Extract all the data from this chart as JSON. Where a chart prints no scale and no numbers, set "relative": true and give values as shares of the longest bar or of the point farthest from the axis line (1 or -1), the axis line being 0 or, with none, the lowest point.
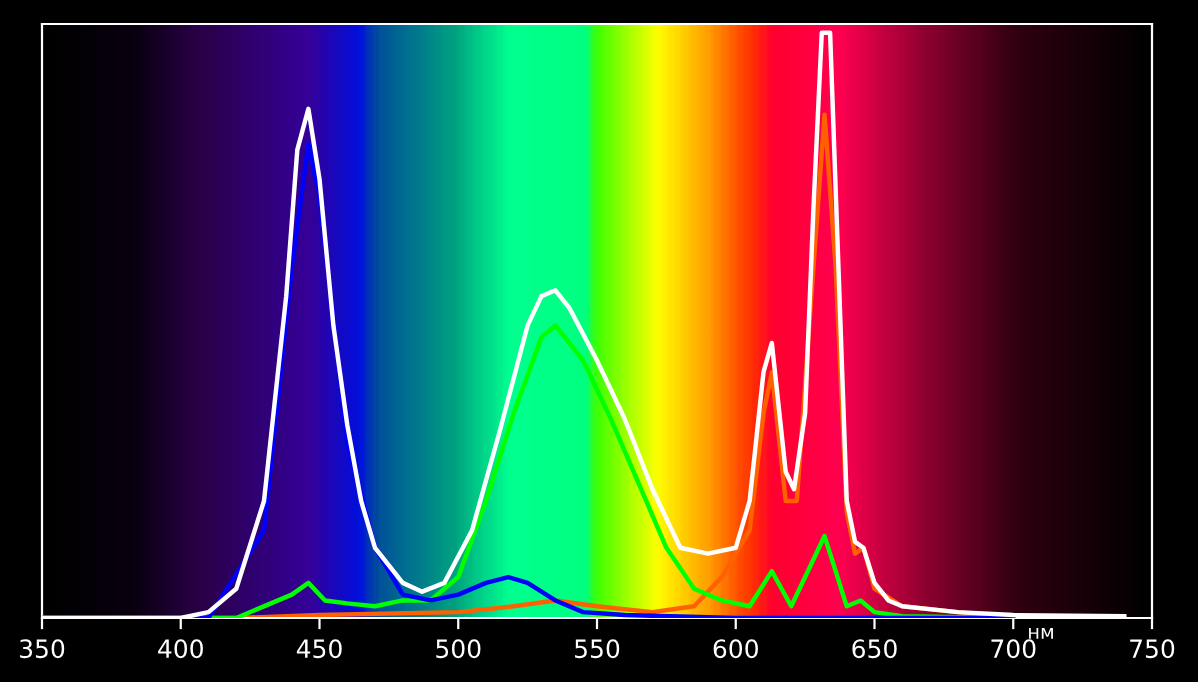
{
  "chart_data": {
    "type": "line",
    "xlabel": "нм",
    "relative": true,
    "xlim": [
      350,
      750
    ],
    "xticks": [
      350,
      400,
      450,
      500,
      550,
      600,
      650,
      700,
      750
    ],
    "tick_labels": "x",
    "grid": false,
    "marker": "none",
    "line_style": "solid",
    "series": [
      {
        "color": "#ff6000",
        "x": [
          350,
          420,
          450,
          500,
          520,
          535,
          550,
          570,
          585,
          595,
          605,
          610,
          613,
          618,
          622,
          628,
          632,
          636,
          640,
          643,
          646,
          650,
          660,
          680,
          700,
          740
        ],
        "values": [
          0,
          0,
          0.005,
          0.01,
          0.02,
          0.03,
          0.02,
          0.01,
          0.02,
          0.07,
          0.15,
          0.35,
          0.42,
          0.2,
          0.2,
          0.6,
          0.86,
          0.6,
          0.18,
          0.11,
          0.12,
          0.05,
          0.02,
          0.01,
          0,
          0
        ]
      },
      {
        "color": "#00ff00",
        "x": [
          350,
          420,
          440,
          446,
          452,
          460,
          470,
          480,
          490,
          500,
          510,
          520,
          530,
          535,
          545,
          555,
          565,
          575,
          585,
          595,
          605,
          613,
          620,
          628,
          632,
          636,
          640,
          645,
          650,
          660,
          700
        ],
        "values": [
          0,
          0,
          0.04,
          0.06,
          0.03,
          0.025,
          0.02,
          0.03,
          0.03,
          0.07,
          0.2,
          0.35,
          0.48,
          0.5,
          0.44,
          0.34,
          0.23,
          0.12,
          0.05,
          0.03,
          0.02,
          0.08,
          0.02,
          0.1,
          0.14,
          0.08,
          0.02,
          0.03,
          0.01,
          0.003,
          0
        ]
      },
      {
        "color": "#0000ff",
        "x": [
          350,
          410,
          430,
          440,
          446,
          450,
          460,
          470,
          480,
          490,
          500,
          510,
          518,
          525,
          535,
          545,
          560,
          600,
          700
        ],
        "values": [
          0,
          0,
          0.15,
          0.6,
          0.81,
          0.72,
          0.3,
          0.12,
          0.04,
          0.03,
          0.04,
          0.06,
          0.07,
          0.06,
          0.03,
          0.01,
          0.005,
          0,
          0
        ]
      },
      {
        "color": "#ffffff",
        "x": [
          350,
          400,
          410,
          420,
          430,
          438,
          442,
          446,
          450,
          455,
          460,
          465,
          470,
          480,
          487,
          495,
          505,
          515,
          525,
          530,
          535,
          540,
          550,
          560,
          570,
          580,
          590,
          600,
          605,
          610,
          613,
          618,
          621,
          625,
          628,
          631,
          634,
          637,
          640,
          643,
          646,
          650,
          655,
          660,
          680,
          700,
          740
        ],
        "values": [
          0,
          0,
          0.01,
          0.05,
          0.2,
          0.55,
          0.8,
          0.87,
          0.75,
          0.5,
          0.33,
          0.2,
          0.12,
          0.06,
          0.045,
          0.06,
          0.15,
          0.32,
          0.5,
          0.55,
          0.56,
          0.53,
          0.44,
          0.34,
          0.22,
          0.12,
          0.11,
          0.12,
          0.2,
          0.42,
          0.47,
          0.25,
          0.22,
          0.35,
          0.7,
          1.0,
          1.0,
          0.6,
          0.2,
          0.13,
          0.12,
          0.06,
          0.03,
          0.02,
          0.01,
          0.005,
          0.003
        ]
      }
    ]
  }
}
